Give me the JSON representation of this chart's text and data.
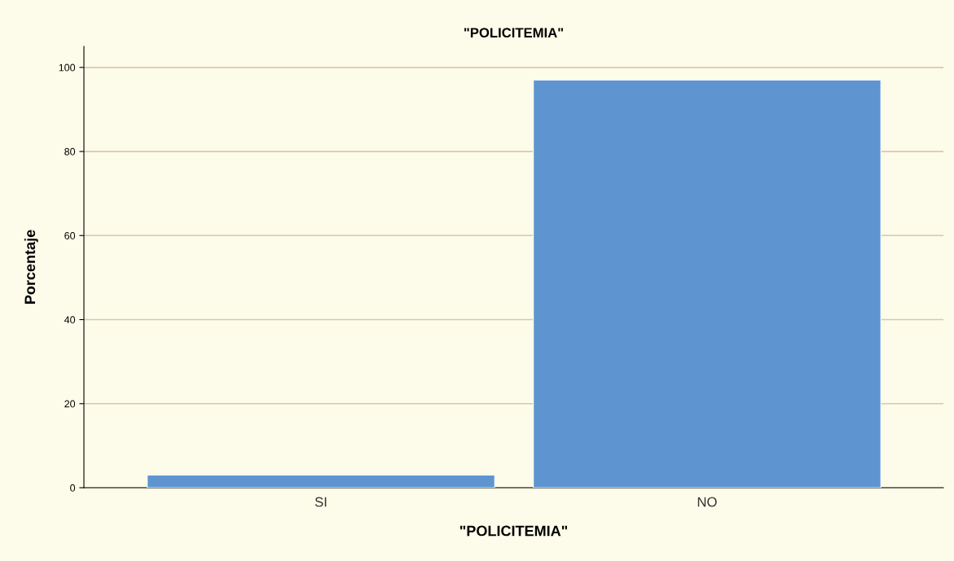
{
  "chart_data": {
    "type": "bar",
    "title": "\"POLICITEMIA\"",
    "xlabel": "\"POLICITEMIA\"",
    "ylabel": "Porcentaje",
    "categories": [
      "SI",
      "NO"
    ],
    "values": [
      3,
      97
    ],
    "color": "#5e95d0",
    "ylim": [
      0,
      105
    ],
    "yticks": [
      0,
      20,
      40,
      60,
      80,
      100
    ],
    "grid": "y"
  }
}
